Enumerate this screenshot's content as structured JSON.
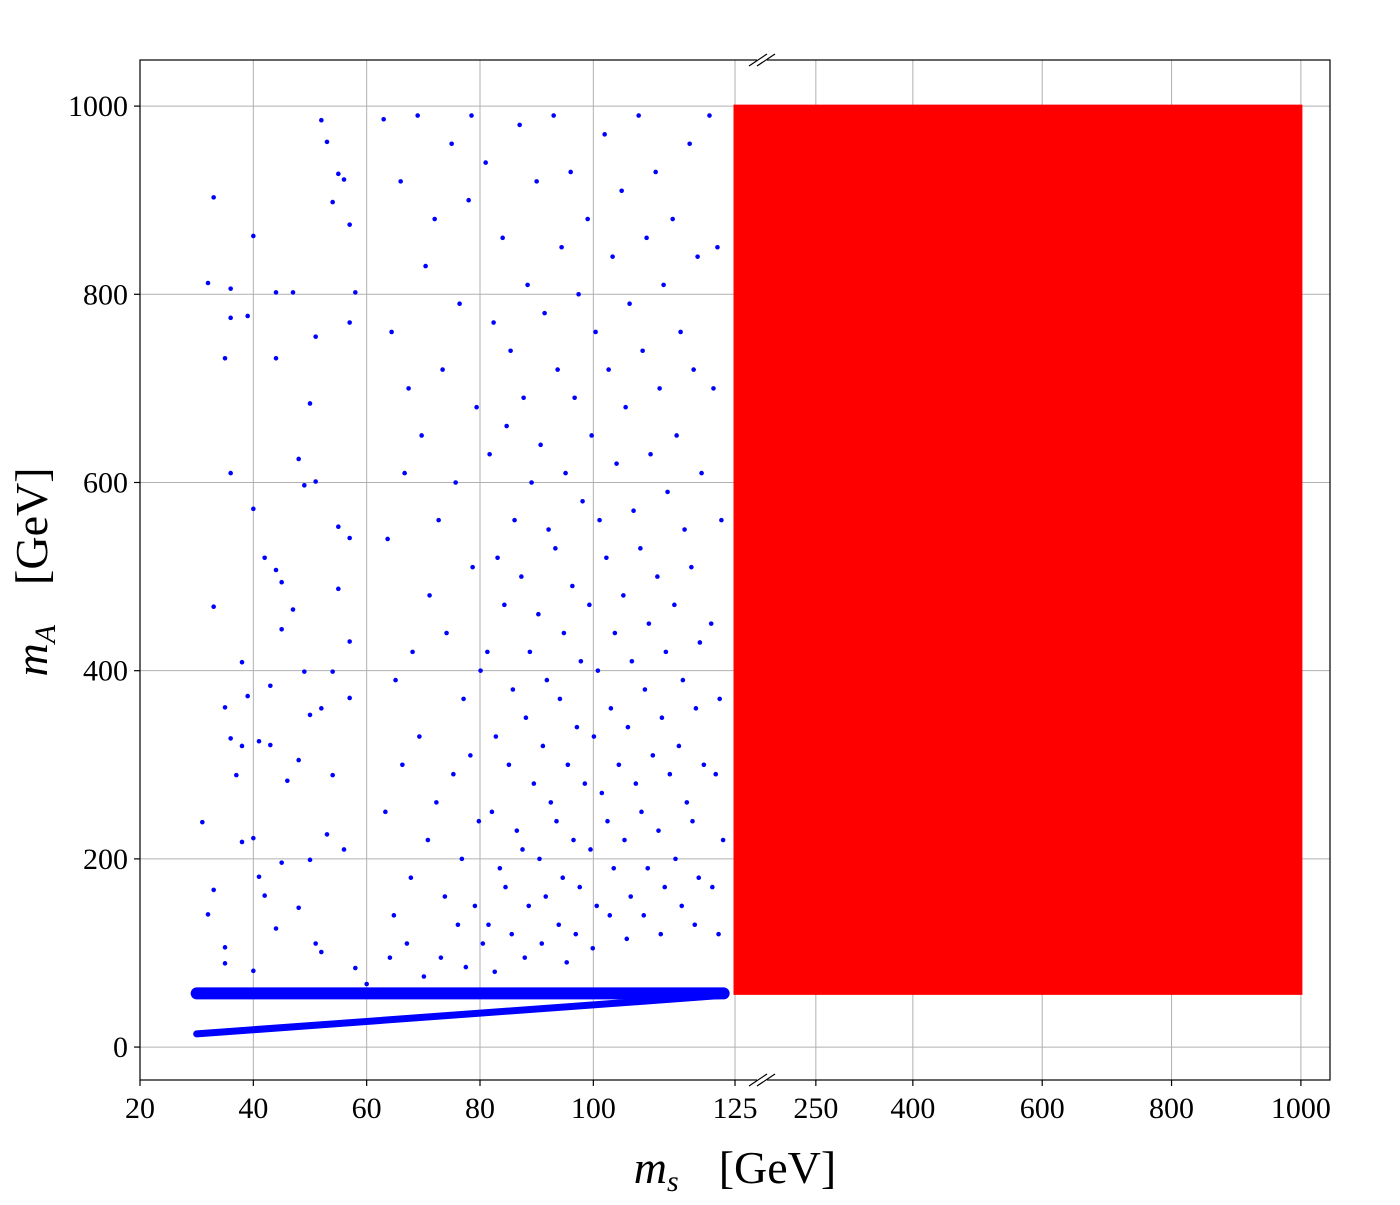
{
  "chart_data": {
    "type": "scatter",
    "grid": true,
    "broken_x_axis": true,
    "xlabel": {
      "symbol": "m",
      "sub": "s",
      "unit": "[GeV]"
    },
    "ylabel": {
      "symbol": "m",
      "sub": "A",
      "unit": "[GeV]"
    },
    "x_panels": [
      {
        "xlim": [
          20,
          125
        ],
        "xticks": [
          20,
          40,
          60,
          80,
          100,
          125
        ]
      },
      {
        "xlim": [
          125,
          1045
        ],
        "xticks": [
          250,
          400,
          600,
          800,
          1000
        ]
      }
    ],
    "ylim": [
      -35,
      1049
    ],
    "yticks": [
      0,
      200,
      400,
      600,
      800,
      1000
    ],
    "series": [
      {
        "mode": "markers",
        "panel": 0,
        "color": "#0000ff",
        "x": [
          33,
          40,
          32,
          36,
          44,
          47,
          39,
          36,
          35,
          44,
          52,
          53,
          55,
          54,
          56,
          57,
          58,
          57,
          51,
          50,
          36,
          48,
          40,
          49,
          51,
          55,
          57,
          42,
          44,
          45,
          33,
          47,
          55,
          45,
          57,
          38,
          49,
          54,
          43,
          39,
          57,
          35,
          50,
          52,
          36,
          38,
          41,
          43,
          46,
          37,
          48,
          54,
          38,
          40,
          45,
          50,
          53,
          56,
          31,
          42,
          41,
          33,
          32,
          44,
          48,
          51,
          35,
          52,
          58,
          60,
          35,
          40,
          63,
          64.4,
          63.7,
          65.1,
          63.3,
          64.8,
          64.1,
          66,
          67.4,
          66.7,
          68.1,
          66.3,
          67.8,
          67.1,
          69,
          70.4,
          69.7,
          71.1,
          69.3,
          70.8,
          70.1,
          72,
          73.4,
          72.7,
          74.1,
          72.3,
          73.8,
          73.1,
          75,
          76.4,
          75.7,
          77.1,
          75.3,
          76.8,
          76.1,
          77.5,
          78,
          79.4,
          78.7,
          80.1,
          78.3,
          79.8,
          79.1,
          80.5,
          78.5,
          81,
          82.4,
          81.7,
          83.1,
          81.3,
          82.8,
          82.1,
          83.5,
          81.5,
          82.6,
          84,
          85.4,
          84.7,
          86.1,
          84.3,
          85.8,
          85.1,
          86.5,
          84.5,
          85.6,
          87,
          88.4,
          87.7,
          89.1,
          87.3,
          88.8,
          88.1,
          89.5,
          87.5,
          88.6,
          87.9,
          90,
          91.4,
          90.7,
          92.1,
          90.3,
          91.8,
          91.1,
          92.5,
          90.5,
          91.6,
          90.9,
          93,
          94.4,
          93.7,
          95.1,
          93.3,
          94.8,
          94.1,
          95.5,
          93.5,
          94.6,
          93.9,
          95.3,
          96,
          97.4,
          96.7,
          98.1,
          96.3,
          97.8,
          97.1,
          98.5,
          96.5,
          97.6,
          96.9,
          99,
          100.4,
          99.7,
          101.1,
          99.3,
          100.8,
          100.1,
          101.5,
          99.5,
          100.6,
          99.9,
          102,
          103.4,
          102.7,
          104.1,
          102.3,
          103.8,
          103.1,
          104.5,
          102.5,
          103.6,
          102.9,
          105,
          106.4,
          105.7,
          107.1,
          105.3,
          106.8,
          106.1,
          107.5,
          105.5,
          106.6,
          105.9,
          108,
          109.4,
          108.7,
          110.1,
          108.3,
          109.8,
          109.1,
          110.5,
          108.5,
          109.6,
          108.9,
          111,
          112.4,
          111.7,
          113.1,
          111.3,
          112.8,
          112.1,
          113.5,
          111.5,
          112.6,
          111.9,
          114,
          115.4,
          114.7,
          116.1,
          114.3,
          115.8,
          115.1,
          116.5,
          114.5,
          115.6,
          117,
          118.4,
          117.7,
          119.1,
          117.3,
          118.8,
          118.1,
          119.5,
          117.5,
          118.6,
          117.9,
          120.5,
          121.9,
          121.2,
          122.6,
          120.8,
          122.3,
          121.6,
          122.9,
          121,
          122.1
        ],
        "y": [
          903,
          862,
          812,
          806,
          802,
          802,
          777,
          775,
          732,
          732,
          985,
          962,
          928,
          898,
          922,
          874,
          802,
          770,
          755,
          684,
          610,
          625,
          572,
          597,
          601,
          553,
          541,
          520,
          507,
          494,
          468,
          465,
          487,
          444,
          431,
          409,
          399,
          399,
          384,
          373,
          371,
          361,
          353,
          360,
          328,
          320,
          325,
          321,
          283,
          289,
          305,
          289,
          218,
          222,
          196,
          199,
          226,
          210,
          239,
          161,
          181,
          167,
          141,
          126,
          148,
          110,
          106,
          101,
          84,
          67,
          89,
          81,
          986,
          760,
          540,
          390,
          250,
          140,
          95,
          920,
          700,
          610,
          420,
          300,
          180,
          110,
          990,
          830,
          650,
          480,
          330,
          220,
          75,
          880,
          720,
          560,
          440,
          260,
          160,
          95,
          960,
          790,
          600,
          370,
          290,
          200,
          130,
          85,
          900,
          680,
          510,
          400,
          310,
          240,
          150,
          110,
          990,
          940,
          770,
          630,
          520,
          420,
          330,
          250,
          190,
          130,
          80,
          860,
          740,
          660,
          560,
          470,
          380,
          300,
          230,
          170,
          120,
          980,
          810,
          690,
          600,
          500,
          420,
          350,
          280,
          210,
          150,
          95,
          920,
          780,
          640,
          550,
          460,
          390,
          320,
          260,
          200,
          160,
          110,
          990,
          850,
          720,
          610,
          530,
          440,
          370,
          300,
          240,
          180,
          130,
          90,
          930,
          800,
          690,
          580,
          490,
          410,
          340,
          280,
          220,
          170,
          120,
          880,
          760,
          650,
          560,
          470,
          400,
          330,
          270,
          210,
          150,
          105,
          970,
          840,
          720,
          620,
          520,
          440,
          360,
          300,
          240,
          190,
          140,
          910,
          790,
          680,
          570,
          480,
          410,
          340,
          280,
          220,
          160,
          115,
          990,
          860,
          740,
          630,
          530,
          450,
          380,
          310,
          250,
          190,
          140,
          930,
          810,
          700,
          590,
          500,
          420,
          350,
          290,
          230,
          170,
          120,
          880,
          760,
          650,
          550,
          470,
          390,
          320,
          260,
          200,
          150,
          960,
          840,
          720,
          610,
          510,
          430,
          360,
          300,
          240,
          180,
          130,
          990,
          850,
          700,
          560,
          450,
          370,
          290,
          220,
          170,
          120
        ]
      },
      {
        "mode": "band",
        "panel": 0,
        "color": "#0000ff",
        "x": [
          30,
          123
        ],
        "y": [
          57,
          57
        ]
      },
      {
        "mode": "band",
        "panel": 0,
        "color": "#0000ff",
        "x": [
          30,
          123
        ],
        "y": [
          14,
          55
        ]
      },
      {
        "mode": "region",
        "panel": 1,
        "color": "#ff0000",
        "x": [
          125,
          1000,
          1000,
          125
        ],
        "y": [
          57,
          57,
          1000,
          1000
        ]
      }
    ]
  }
}
